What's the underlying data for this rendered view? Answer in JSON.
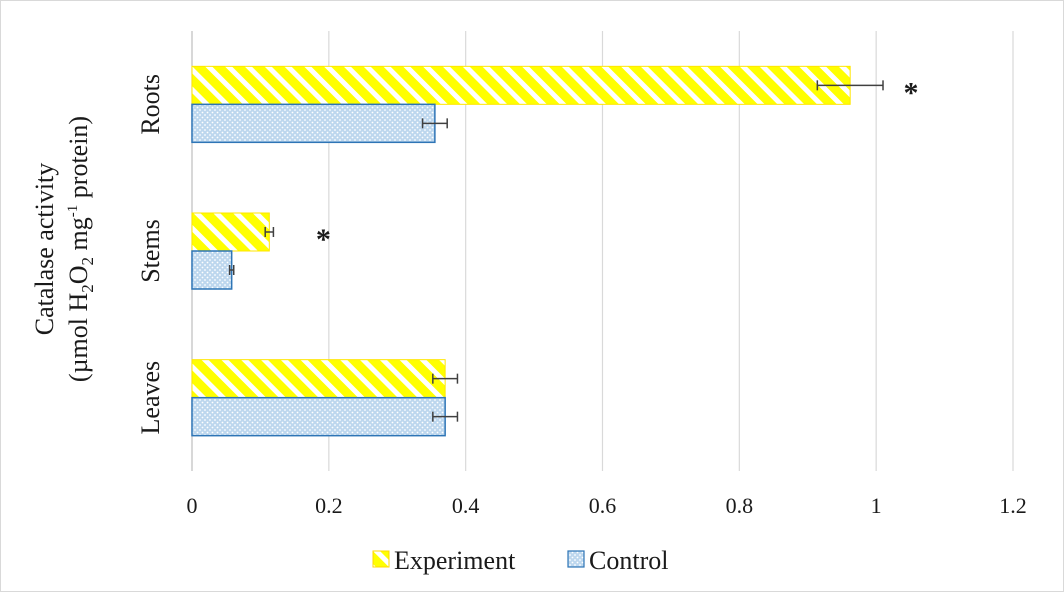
{
  "chart_data": {
    "type": "bar",
    "orientation": "horizontal",
    "categories": [
      "Leaves",
      "Stems",
      "Roots"
    ],
    "series": [
      {
        "name": "Experiment",
        "values": [
          0.37,
          0.113,
          0.962
        ],
        "errors": [
          0.018,
          0.006,
          0.048
        ],
        "significance": [
          "",
          "*",
          "*"
        ],
        "color": "#ffff00",
        "pattern": "diagonal-stripes"
      },
      {
        "name": "Control",
        "values": [
          0.37,
          0.058,
          0.355
        ],
        "errors": [
          0.018,
          0.003,
          0.018
        ],
        "color": "#bdd7ee",
        "pattern": "dots",
        "border_color": "#2e75b6"
      }
    ],
    "xticks": [
      "0",
      "0.2",
      "0.4",
      "0.6",
      "0.8",
      "1",
      "1.2"
    ],
    "xlim": [
      0,
      1.2
    ],
    "ylabel_line1": "Catalase activity",
    "ylabel_line2": {
      "prefix": "(µmol H",
      "sub1": "2",
      "mid1": "O",
      "sub2": "2",
      "mid2": " mg",
      "sup": "-1",
      "suffix": " protein)"
    },
    "grid": "vertical",
    "legend_position": "bottom"
  }
}
